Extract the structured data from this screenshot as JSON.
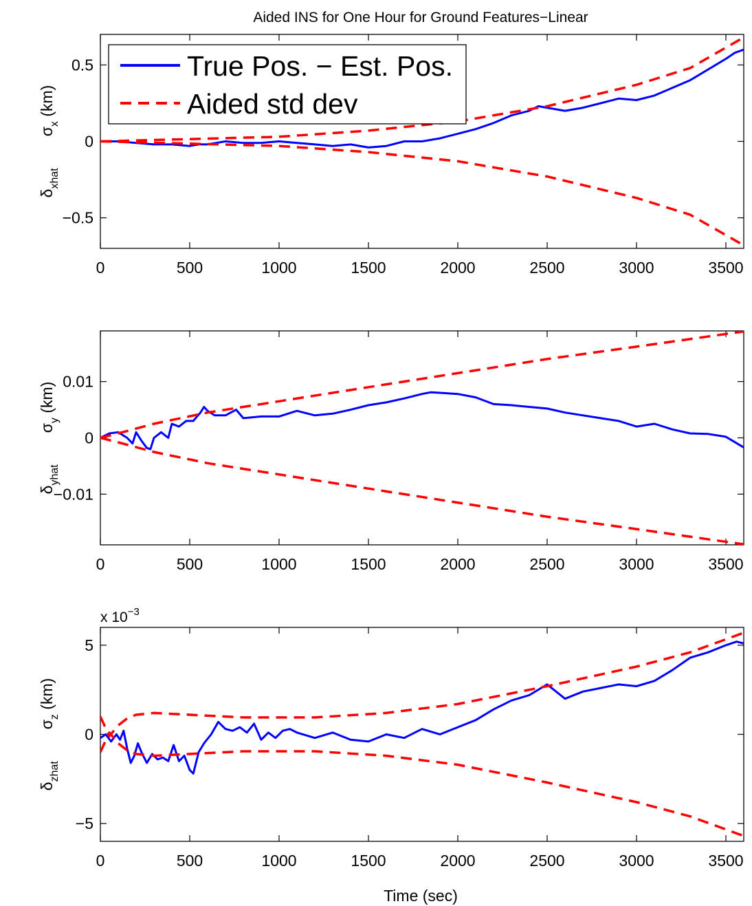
{
  "figure": {
    "title": "Aided INS for One Hour for Ground Features−Linear",
    "xlabel": "Time (sec)"
  },
  "legend": {
    "placement": "top-left",
    "entries": [
      "True Pos. − Est. Pos.",
      "Aided std dev"
    ]
  },
  "colors": {
    "estimate": "#0000ff",
    "std": "#ff0000",
    "axes": "#000000"
  },
  "chart_data": [
    {
      "type": "line",
      "title": "Aided INS for One Hour for Ground Features−Linear",
      "xlabel": "",
      "ylabel": {
        "sigma": "σ",
        "sigma_sub": "x",
        "delta": "δ",
        "delta_sub": "xhat",
        "unit": "(km)"
      },
      "xlim": [
        0,
        3600
      ],
      "ylim": [
        -0.7,
        0.7
      ],
      "xticks": [
        0,
        500,
        1000,
        1500,
        2000,
        2500,
        3000,
        3500
      ],
      "xticklabels": [
        "0",
        "500",
        "1000",
        "1500",
        "2000",
        "2500",
        "3000",
        "3500"
      ],
      "yticks": [
        -0.5,
        0,
        0.5
      ],
      "yticklabels": [
        "−0.5",
        "0",
        "0.5"
      ],
      "exponent_label": "",
      "legend": "top-left",
      "series": [
        {
          "name": "True Pos. − Est. Pos.",
          "style": "solid",
          "x": [
            0,
            100,
            200,
            300,
            400,
            500,
            550,
            600,
            700,
            800,
            900,
            1000,
            1100,
            1200,
            1300,
            1400,
            1500,
            1600,
            1700,
            1800,
            1900,
            2000,
            2100,
            2200,
            2300,
            2400,
            2450,
            2500,
            2600,
            2700,
            2800,
            2900,
            3000,
            3100,
            3200,
            3300,
            3400,
            3500,
            3550,
            3600
          ],
          "y": [
            0.0,
            0.0,
            -0.01,
            -0.02,
            -0.02,
            -0.03,
            -0.02,
            -0.02,
            0.0,
            -0.01,
            -0.01,
            0.0,
            -0.01,
            -0.02,
            -0.03,
            -0.02,
            -0.04,
            -0.03,
            0.0,
            0.0,
            0.02,
            0.05,
            0.08,
            0.12,
            0.17,
            0.2,
            0.23,
            0.22,
            0.2,
            0.22,
            0.25,
            0.28,
            0.27,
            0.3,
            0.35,
            0.4,
            0.47,
            0.54,
            0.58,
            0.6
          ]
        },
        {
          "name": "Aided std dev",
          "style": "dashed",
          "x": [
            0,
            500,
            1000,
            1500,
            2000,
            2500,
            3000,
            3300,
            3600
          ],
          "y": [
            0.0,
            0.015,
            0.03,
            0.07,
            0.13,
            0.23,
            0.37,
            0.48,
            0.68
          ]
        },
        {
          "name": "",
          "style": "dashed",
          "x": [
            0,
            500,
            1000,
            1500,
            2000,
            2500,
            3000,
            3300,
            3600
          ],
          "y": [
            0.0,
            -0.015,
            -0.03,
            -0.07,
            -0.13,
            -0.23,
            -0.37,
            -0.48,
            -0.68
          ]
        }
      ]
    },
    {
      "type": "line",
      "title": "",
      "xlabel": "",
      "ylabel": {
        "sigma": "σ",
        "sigma_sub": "y",
        "delta": "δ",
        "delta_sub": "yhat",
        "unit": "(km)"
      },
      "xlim": [
        0,
        3600
      ],
      "ylim": [
        -0.019,
        0.019
      ],
      "xticks": [
        0,
        500,
        1000,
        1500,
        2000,
        2500,
        3000,
        3500
      ],
      "xticklabels": [
        "0",
        "500",
        "1000",
        "1500",
        "2000",
        "2500",
        "3000",
        "3500"
      ],
      "yticks": [
        -0.01,
        0,
        0.01
      ],
      "yticklabels": [
        "−0.01",
        "0",
        "0.01"
      ],
      "exponent_label": "",
      "legend": "",
      "series": [
        {
          "name": "True Pos. − Est. Pos.",
          "style": "solid",
          "x": [
            0,
            50,
            100,
            150,
            180,
            200,
            230,
            260,
            280,
            300,
            340,
            380,
            400,
            440,
            480,
            520,
            560,
            580,
            600,
            640,
            700,
            760,
            800,
            900,
            1000,
            1100,
            1200,
            1300,
            1400,
            1500,
            1600,
            1700,
            1800,
            1850,
            1900,
            2000,
            2100,
            2200,
            2300,
            2400,
            2500,
            2600,
            2700,
            2800,
            2900,
            3000,
            3100,
            3200,
            3300,
            3400,
            3500,
            3600
          ],
          "y": [
            0.0,
            0.0008,
            0.001,
            0.0,
            -0.001,
            0.001,
            -0.0005,
            -0.0018,
            -0.002,
            0.0,
            0.001,
            0.0,
            0.0025,
            0.002,
            0.003,
            0.003,
            0.0045,
            0.0055,
            0.0048,
            0.004,
            0.004,
            0.005,
            0.0035,
            0.0038,
            0.0038,
            0.0048,
            0.004,
            0.0043,
            0.005,
            0.0058,
            0.0063,
            0.007,
            0.0078,
            0.0081,
            0.008,
            0.0078,
            0.0072,
            0.006,
            0.0058,
            0.0055,
            0.0052,
            0.0045,
            0.004,
            0.0035,
            0.003,
            0.002,
            0.0025,
            0.0015,
            0.0008,
            0.0007,
            0.0002,
            -0.0017
          ]
        },
        {
          "name": "Aided std dev",
          "style": "dashed",
          "x": [
            0,
            100,
            300,
            600,
            1000,
            1500,
            2000,
            2500,
            3000,
            3600
          ],
          "y": [
            0.0,
            0.0008,
            0.0025,
            0.0045,
            0.0065,
            0.009,
            0.0115,
            0.014,
            0.0162,
            0.0189
          ]
        },
        {
          "name": "",
          "style": "dashed",
          "x": [
            0,
            100,
            300,
            600,
            1000,
            1500,
            2000,
            2500,
            3000,
            3600
          ],
          "y": [
            0.0,
            -0.0008,
            -0.0025,
            -0.0045,
            -0.0065,
            -0.009,
            -0.0115,
            -0.014,
            -0.0162,
            -0.0189
          ]
        }
      ]
    },
    {
      "type": "line",
      "title": "",
      "xlabel": "Time (sec)",
      "ylabel": {
        "sigma": "σ",
        "sigma_sub": "z",
        "delta": "δ",
        "delta_sub": "zhat",
        "unit": "(km)"
      },
      "xlim": [
        0,
        3600
      ],
      "ylim": [
        -6,
        6
      ],
      "xticks": [
        0,
        500,
        1000,
        1500,
        2000,
        2500,
        3000,
        3500
      ],
      "xticklabels": [
        "0",
        "500",
        "1000",
        "1500",
        "2000",
        "2500",
        "3000",
        "3500"
      ],
      "yticks": [
        -5,
        0,
        5
      ],
      "yticklabels": [
        "−5",
        "0",
        "5"
      ],
      "exponent_label": {
        "base": "x 10",
        "power": "−3"
      },
      "legend": "",
      "series": [
        {
          "name": "True Pos. − Est. Pos.",
          "style": "solid",
          "x": [
            0,
            30,
            60,
            90,
            110,
            130,
            150,
            170,
            190,
            210,
            230,
            260,
            290,
            320,
            350,
            380,
            410,
            440,
            470,
            500,
            520,
            550,
            580,
            620,
            660,
            700,
            740,
            780,
            820,
            860,
            900,
            940,
            980,
            1020,
            1060,
            1100,
            1200,
            1300,
            1400,
            1500,
            1600,
            1700,
            1800,
            1900,
            2000,
            2100,
            2200,
            2300,
            2400,
            2500,
            2550,
            2600,
            2700,
            2800,
            2900,
            3000,
            3100,
            3200,
            3300,
            3400,
            3500,
            3560,
            3600
          ],
          "y": [
            -0.2,
            0.0,
            -0.4,
            0.0,
            -0.3,
            0.2,
            -0.8,
            -1.6,
            -1.2,
            -0.5,
            -1.0,
            -1.6,
            -1.1,
            -1.4,
            -1.3,
            -1.5,
            -0.6,
            -1.5,
            -1.2,
            -2.0,
            -2.2,
            -1.0,
            -0.5,
            0.0,
            0.7,
            0.3,
            0.2,
            0.4,
            0.1,
            0.6,
            -0.3,
            0.1,
            -0.2,
            0.2,
            0.3,
            0.1,
            -0.2,
            0.1,
            -0.3,
            -0.4,
            0.0,
            -0.2,
            0.3,
            0.0,
            0.4,
            0.8,
            1.4,
            1.9,
            2.2,
            2.8,
            2.4,
            2.0,
            2.4,
            2.6,
            2.8,
            2.7,
            3.0,
            3.6,
            4.3,
            4.6,
            5.0,
            5.2,
            5.1
          ]
        },
        {
          "name": "Aided std dev",
          "style": "dashed",
          "x": [
            0,
            50,
            100,
            150,
            200,
            300,
            500,
            800,
            1200,
            1600,
            2000,
            2500,
            3000,
            3300,
            3600
          ],
          "y": [
            1.0,
            -0.1,
            0.5,
            0.9,
            1.1,
            1.2,
            1.1,
            0.95,
            0.95,
            1.2,
            1.7,
            2.7,
            3.8,
            4.6,
            5.7
          ]
        },
        {
          "name": "",
          "style": "dashed",
          "x": [
            0,
            50,
            100,
            150,
            200,
            300,
            500,
            800,
            1200,
            1600,
            2000,
            2500,
            3000,
            3300,
            3600
          ],
          "y": [
            -1.0,
            0.1,
            -0.5,
            -0.9,
            -1.1,
            -1.2,
            -1.1,
            -0.95,
            -0.95,
            -1.2,
            -1.7,
            -2.7,
            -3.8,
            -4.6,
            -5.7
          ]
        }
      ]
    }
  ]
}
